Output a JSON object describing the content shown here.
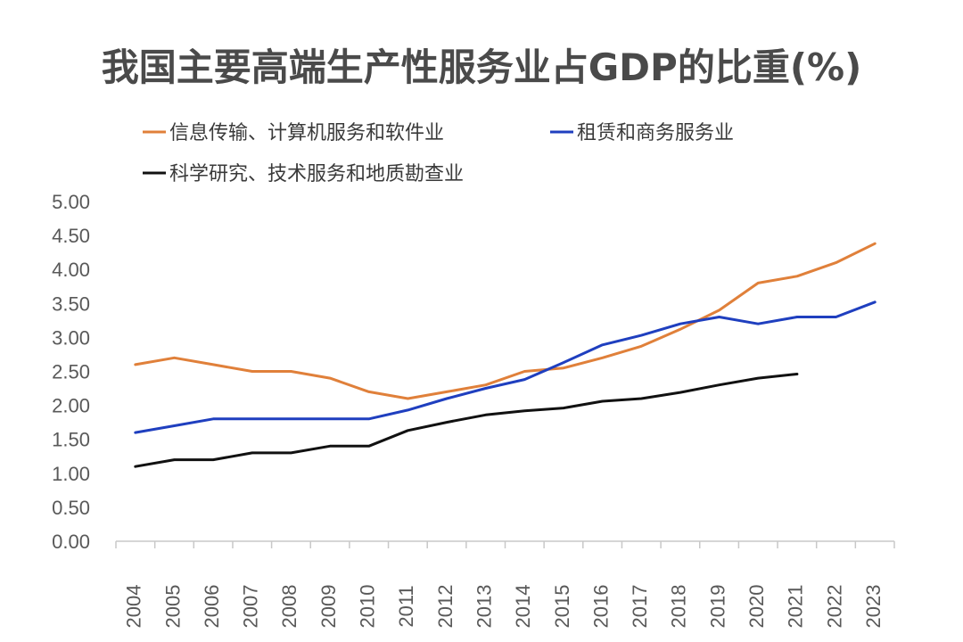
{
  "chart_data": {
    "type": "line",
    "title": "我国主要高端生产性服务业占GDP的比重(%)",
    "xlabel": "",
    "ylabel": "",
    "ylim": [
      0,
      5
    ],
    "ytick_step": 0.5,
    "y_tick_labels": [
      "0.00",
      "0.50",
      "1.00",
      "1.50",
      "2.00",
      "2.50",
      "3.00",
      "3.50",
      "4.00",
      "4.50",
      "5.00"
    ],
    "grid": false,
    "legend_position": "top",
    "categories": [
      "2004",
      "2005",
      "2006",
      "2007",
      "2008",
      "2009",
      "2010",
      "2011",
      "2012",
      "2013",
      "2014",
      "2015",
      "2016",
      "2017",
      "2018",
      "2019",
      "2020",
      "2021",
      "2022",
      "2023"
    ],
    "series": [
      {
        "name": "信息传输、计算机服务和软件业",
        "color": "#E0803A",
        "values": [
          2.6,
          2.7,
          2.6,
          2.5,
          2.5,
          2.4,
          2.2,
          2.1,
          2.2,
          2.3,
          2.5,
          2.55,
          2.7,
          2.87,
          3.12,
          3.4,
          3.8,
          3.9,
          4.1,
          4.38
        ]
      },
      {
        "name": "租赁和商务服务业",
        "color": "#1F3FBF",
        "values": [
          1.6,
          1.7,
          1.8,
          1.8,
          1.8,
          1.8,
          1.8,
          1.93,
          2.1,
          2.25,
          2.38,
          2.63,
          2.89,
          3.03,
          3.2,
          3.3,
          3.2,
          3.3,
          3.3,
          3.52
        ]
      },
      {
        "name": "科学研究、技术服务和地质勘查业",
        "color": "#111111",
        "values": [
          1.1,
          1.2,
          1.2,
          1.3,
          1.3,
          1.4,
          1.4,
          1.63,
          1.75,
          1.86,
          1.92,
          1.96,
          2.06,
          2.1,
          2.19,
          2.3,
          2.4,
          2.46,
          null,
          null
        ]
      }
    ]
  }
}
